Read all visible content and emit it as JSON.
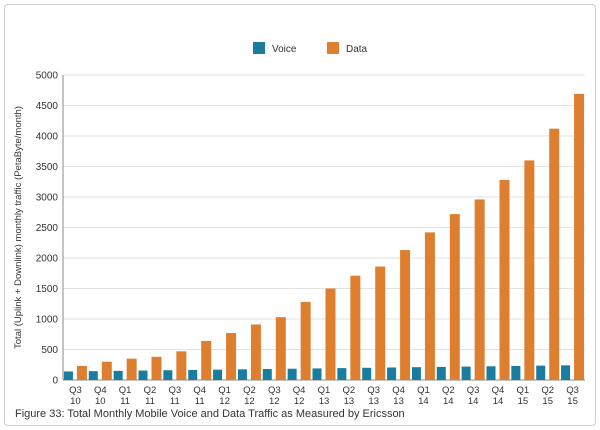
{
  "chart_data": {
    "type": "bar",
    "title": "",
    "xlabel": "",
    "ylabel": "Total (Uplink + Downlink) monthly traffic (PetaByte/month)",
    "ylim": [
      0,
      5000
    ],
    "yticks": [
      0,
      500,
      1000,
      1500,
      2000,
      2500,
      3000,
      3500,
      4000,
      4500,
      5000
    ],
    "grid": true,
    "legend_position": "top-center",
    "categories": [
      [
        "Q3",
        "10"
      ],
      [
        "Q4",
        "10"
      ],
      [
        "Q1",
        "11"
      ],
      [
        "Q2",
        "11"
      ],
      [
        "Q3",
        "11"
      ],
      [
        "Q4",
        "11"
      ],
      [
        "Q1",
        "12"
      ],
      [
        "Q2",
        "12"
      ],
      [
        "Q3",
        "12"
      ],
      [
        "Q4",
        "12"
      ],
      [
        "Q1",
        "13"
      ],
      [
        "Q2",
        "13"
      ],
      [
        "Q3",
        "13"
      ],
      [
        "Q4",
        "13"
      ],
      [
        "Q1",
        "14"
      ],
      [
        "Q2",
        "14"
      ],
      [
        "Q3",
        "14"
      ],
      [
        "Q4",
        "14"
      ],
      [
        "Q1",
        "15"
      ],
      [
        "Q2",
        "15"
      ],
      [
        "Q3",
        "15"
      ]
    ],
    "series": [
      {
        "name": "Voice",
        "color": "#1a7c9e",
        "values": [
          140,
          145,
          150,
          155,
          160,
          165,
          170,
          175,
          180,
          185,
          190,
          195,
          200,
          205,
          210,
          215,
          220,
          225,
          230,
          235,
          240
        ]
      },
      {
        "name": "Data",
        "color": "#dd7f2f",
        "values": [
          230,
          300,
          350,
          380,
          470,
          640,
          770,
          910,
          1030,
          1280,
          1500,
          1710,
          1860,
          2130,
          2420,
          2720,
          2960,
          3280,
          3600,
          4120,
          4690
        ]
      }
    ]
  },
  "caption": "Figure 33: Total Monthly Mobile Voice and Data Traffic as Measured by Ericsson",
  "colors": {
    "gridline": "#e2e2e2",
    "axis": "#888888"
  }
}
